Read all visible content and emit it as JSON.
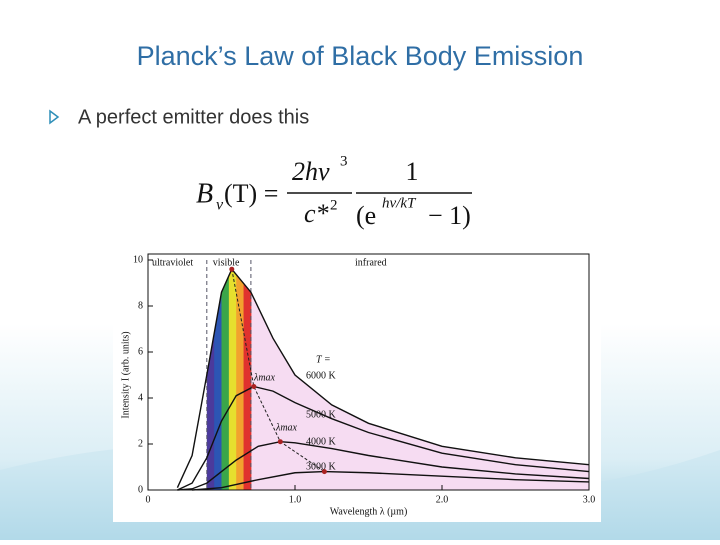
{
  "slide": {
    "title": "Planck’s Law of Black Body Emission",
    "bullet": "A perfect emitter does this",
    "formula": {
      "lhs": "B",
      "lhs_sub": "ν",
      "lhs_arg": "(T) =",
      "num1": "2hν",
      "num1_sup": "3",
      "den1": "c*",
      "den1_sup": "2",
      "num2": "1",
      "den2_open": "(e",
      "den2_sup": "hν/kT",
      "den2_close": "− 1)"
    }
  },
  "chart_data": {
    "type": "line",
    "xlabel": "Wavelength  λ  (µm)",
    "ylabel": "Intensity  I  (arb. units)",
    "xlim": [
      0,
      3
    ],
    "xticks": [
      0,
      {
        "value": 1,
        "label": "1.0"
      },
      {
        "value": 2,
        "label": "2.0"
      },
      {
        "value": 3,
        "label": "3.0"
      }
    ],
    "ylim": [
      0,
      10
    ],
    "yticks": [
      0,
      2,
      4,
      6,
      8,
      10
    ],
    "regions": {
      "bounds": [
        0.4,
        0.7
      ],
      "labels": [
        "ultraviolet",
        "visible",
        "infrared"
      ]
    },
    "visible_colors": [
      "#4b3a9c",
      "#2c55b4",
      "#3aa64a",
      "#e6df2e",
      "#f2a22e",
      "#e0322e"
    ],
    "fill_color": "#f6dcf2",
    "annotations": [
      "T =",
      "λmax",
      "λmax"
    ],
    "series": [
      {
        "name": "6000 K",
        "color": "#111111",
        "x": [
          0.2,
          0.3,
          0.4,
          0.5,
          0.57,
          0.7,
          0.85,
          1.0,
          1.25,
          1.5,
          2.0,
          2.5,
          3.0
        ],
        "values": [
          0.1,
          1.5,
          5.0,
          8.6,
          9.6,
          8.6,
          6.6,
          5.0,
          3.7,
          2.9,
          1.9,
          1.4,
          1.1
        ]
      },
      {
        "name": "5000 K",
        "color": "#111111",
        "x": [
          0.2,
          0.3,
          0.4,
          0.5,
          0.6,
          0.72,
          0.85,
          1.0,
          1.25,
          1.5,
          2.0,
          2.5,
          3.0
        ],
        "values": [
          0,
          0.3,
          1.4,
          3.0,
          4.1,
          4.5,
          4.3,
          3.8,
          3.1,
          2.5,
          1.6,
          1.1,
          0.8
        ]
      },
      {
        "name": "4000 K",
        "color": "#111111",
        "x": [
          0.2,
          0.3,
          0.4,
          0.5,
          0.6,
          0.75,
          0.9,
          1.0,
          1.25,
          1.5,
          2.0,
          2.5,
          3.0
        ],
        "values": [
          0,
          0.05,
          0.3,
          0.8,
          1.3,
          1.9,
          2.1,
          2.05,
          1.8,
          1.5,
          1.0,
          0.7,
          0.5
        ]
      },
      {
        "name": "3000 K",
        "color": "#111111",
        "x": [
          0.3,
          0.5,
          0.75,
          1.0,
          1.2,
          1.5,
          2.0,
          2.5,
          3.0
        ],
        "values": [
          0,
          0.1,
          0.45,
          0.75,
          0.8,
          0.75,
          0.6,
          0.45,
          0.35
        ]
      }
    ]
  }
}
